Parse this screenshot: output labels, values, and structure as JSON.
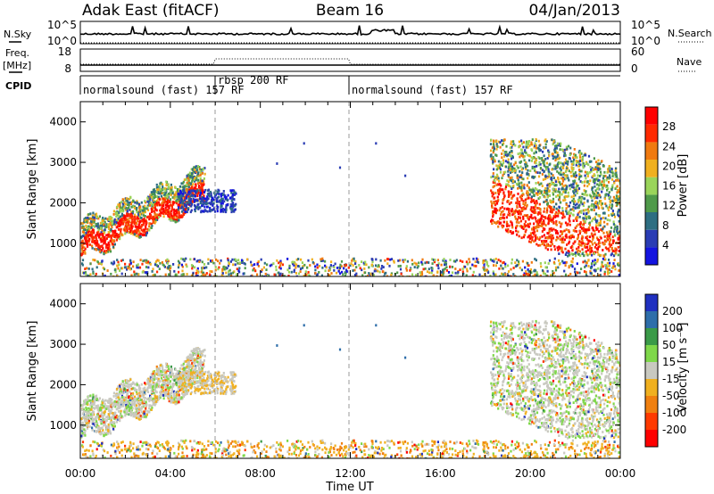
{
  "chart_data": {
    "type": "heatmap",
    "header": {
      "station": "Adak East (fitACF)",
      "beam": "Beam 16",
      "date": "04/Jan/2013"
    },
    "nsky_panel": {
      "left_label": "N.Sky",
      "right_label": "N.Search",
      "left_ticks": [
        "10^5",
        "10^0"
      ],
      "right_ticks": [
        "10^5",
        "10^0"
      ]
    },
    "freq_panel": {
      "left_label_1": "Freq.",
      "left_label_2": "[MHz]",
      "right_label": "Nave",
      "left_ticks": [
        "18",
        "8"
      ],
      "right_ticks": [
        "60",
        "0"
      ]
    },
    "cpid_panel": {
      "label": "CPID",
      "segments": [
        {
          "label": "normalsound (fast) 157 RF",
          "start_hour": 0,
          "end_hour": 6
        },
        {
          "label": "rbsp 200 RF",
          "start_hour": 6,
          "end_hour": 12
        },
        {
          "label": "normalsound (fast) 157 RF",
          "start_hour": 12,
          "end_hour": 24
        }
      ]
    },
    "x_axis": {
      "label": "Time UT",
      "range_hours": [
        0,
        24
      ],
      "tick_hours": [
        0,
        4,
        8,
        12,
        16,
        20,
        24
      ],
      "tick_labels": [
        "00:00",
        "04:00",
        "08:00",
        "12:00",
        "16:00",
        "20:00",
        "00:00"
      ]
    },
    "y_axis": {
      "label": "Slant Range [km]",
      "range_km": [
        180,
        4500
      ],
      "tick_values": [
        1000,
        2000,
        3000,
        4000
      ],
      "tick_labels": [
        "1000",
        "2000",
        "3000",
        "4000"
      ]
    },
    "power": {
      "colorbar_label": "Power [dB]",
      "colorbar_ticks": [
        "28",
        "24",
        "20",
        "16",
        "12",
        "8",
        "4"
      ],
      "colors_low_to_high": [
        "#1414e0",
        "#2a3cb4",
        "#2e6e82",
        "#4f9a4a",
        "#9ad45a",
        "#f0b020",
        "#f07a10",
        "#ff2a00",
        "#ff0000"
      ]
    },
    "velocity": {
      "colorbar_label": "Velocity [m s⁻¹]",
      "colorbar_ticks": [
        "200",
        "100",
        "50",
        "15",
        "-15",
        "-50",
        "-100",
        "-200"
      ],
      "colors_high_to_low": [
        "#2030c0",
        "#2e6eaa",
        "#3a9a48",
        "#7fd84a",
        "#c9c9c0",
        "#f0b020",
        "#f08010",
        "#ff3a00",
        "#ff0000"
      ]
    }
  }
}
